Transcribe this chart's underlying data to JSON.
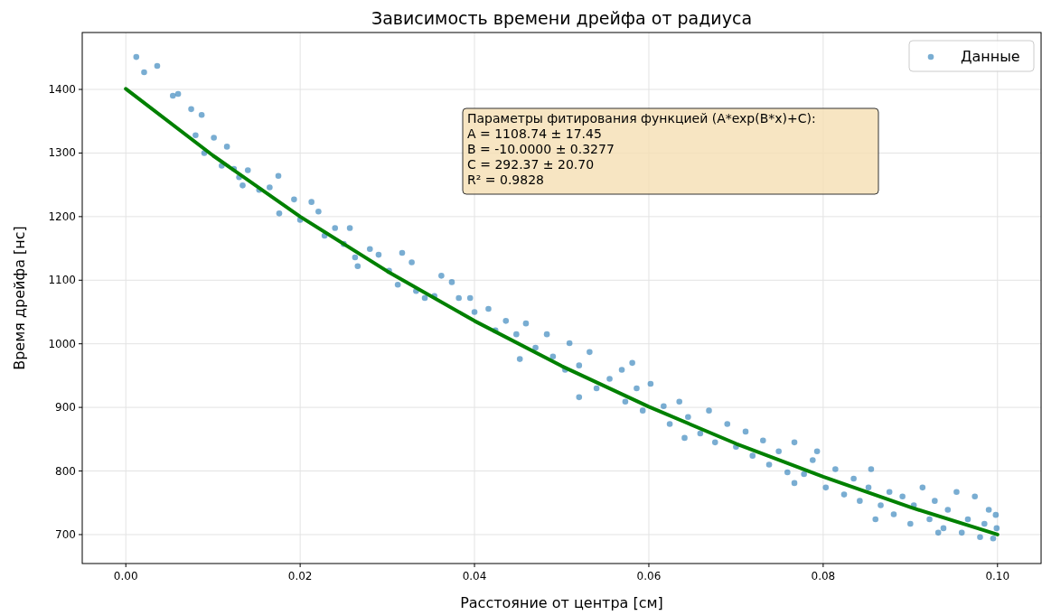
{
  "chart_data": {
    "type": "scatter",
    "title": "Зависимость времени дрейфа от радиуса",
    "xlabel": "Расстояние от центра [см]",
    "ylabel": "Время дрейфа [нс]",
    "xlim": [
      -0.005,
      0.105
    ],
    "ylim": [
      654.5,
      1489.5
    ],
    "xticks": [
      {
        "value": 0,
        "label": "0.00"
      },
      {
        "value": 0.02,
        "label": "0.02"
      },
      {
        "value": 0.04,
        "label": "0.04"
      },
      {
        "value": 0.06,
        "label": "0.06"
      },
      {
        "value": 0.08,
        "label": "0.08"
      },
      {
        "value": 0.1,
        "label": "0.10"
      }
    ],
    "yticks": [
      700,
      800,
      900,
      1000,
      1100,
      1200,
      1300,
      1400
    ],
    "grid": true,
    "legend": "top right",
    "annotations": [
      "Параметры фитирования функцией (A*exp(B*x)+C):\nA = 1108.74 ± 17.45\nB = -10.0000 ± 0.3277\nC = 292.37 ± 20.70\nR² = 0.9828"
    ],
    "series": [
      {
        "name": "Данные",
        "marker": "circle",
        "color": "#1f77b4",
        "x": [
          0.0012,
          0.0021,
          0.0036,
          0.0054,
          0.006,
          0.0075,
          0.0087,
          0.008,
          0.009,
          0.0101,
          0.0116,
          0.011,
          0.0124,
          0.013,
          0.014,
          0.0134,
          0.0153,
          0.0165,
          0.0175,
          0.0176,
          0.0193,
          0.02,
          0.0213,
          0.0221,
          0.0228,
          0.024,
          0.0257,
          0.025,
          0.0263,
          0.028,
          0.029,
          0.0302,
          0.0317,
          0.0328,
          0.0333,
          0.0343,
          0.0362,
          0.0374,
          0.0382,
          0.0395,
          0.04,
          0.0416,
          0.0424,
          0.0436,
          0.0448,
          0.0459,
          0.047,
          0.0483,
          0.049,
          0.0509,
          0.0504,
          0.052,
          0.0532,
          0.054,
          0.0555,
          0.0569,
          0.0573,
          0.0586,
          0.0593,
          0.0602,
          0.0617,
          0.0624,
          0.0635,
          0.0645,
          0.0659,
          0.0669,
          0.0676,
          0.069,
          0.07,
          0.0711,
          0.0719,
          0.0731,
          0.0738,
          0.0749,
          0.0759,
          0.0767,
          0.0778,
          0.0788,
          0.0793,
          0.0803,
          0.0814,
          0.0824,
          0.0835,
          0.0842,
          0.0852,
          0.0855,
          0.0866,
          0.0876,
          0.0881,
          0.0891,
          0.09,
          0.0904,
          0.0914,
          0.0922,
          0.0928,
          0.0938,
          0.0943,
          0.0953,
          0.0959,
          0.0966,
          0.0974,
          0.098,
          0.0985,
          0.099,
          0.0995,
          0.0998,
          0.0999,
          0.0581,
          0.0452,
          0.0312,
          0.0354,
          0.0266,
          0.052,
          0.0641,
          0.0767,
          0.086,
          0.0932
        ],
        "values": [
          1451,
          1427,
          1437,
          1390,
          1393,
          1369,
          1360,
          1328,
          1300,
          1324,
          1310,
          1280,
          1275,
          1262,
          1273,
          1249,
          1242,
          1246,
          1264,
          1205,
          1227,
          1195,
          1223,
          1208,
          1170,
          1182,
          1182,
          1157,
          1136,
          1149,
          1140,
          1115,
          1143,
          1128,
          1083,
          1072,
          1107,
          1097,
          1072,
          1072,
          1050,
          1055,
          1021,
          1036,
          1015,
          1032,
          994,
          1015,
          980,
          1001,
          959,
          966,
          987,
          930,
          945,
          959,
          909,
          930,
          895,
          937,
          902,
          874,
          909,
          885,
          859,
          895,
          845,
          874,
          838,
          862,
          824,
          848,
          810,
          831,
          798,
          845,
          795,
          817,
          831,
          774,
          803,
          763,
          788,
          753,
          774,
          803,
          746,
          767,
          732,
          760,
          717,
          746,
          774,
          724,
          753,
          710,
          739,
          767,
          703,
          724,
          760,
          696,
          717,
          739,
          694,
          731,
          710,
          970,
          976,
          1093,
          1075,
          1122,
          916,
          852,
          781,
          724,
          703
        ]
      },
      {
        "type": "line",
        "marker": "none",
        "color": "#008000",
        "x": [
          0,
          0.01,
          0.02,
          0.03,
          0.04,
          0.05,
          0.06,
          0.07,
          0.08,
          0.09,
          0.1
        ],
        "values": [
          1401,
          1296,
          1200,
          1114,
          1036,
          965,
          901,
          843,
          791,
          743,
          700
        ]
      }
    ]
  }
}
